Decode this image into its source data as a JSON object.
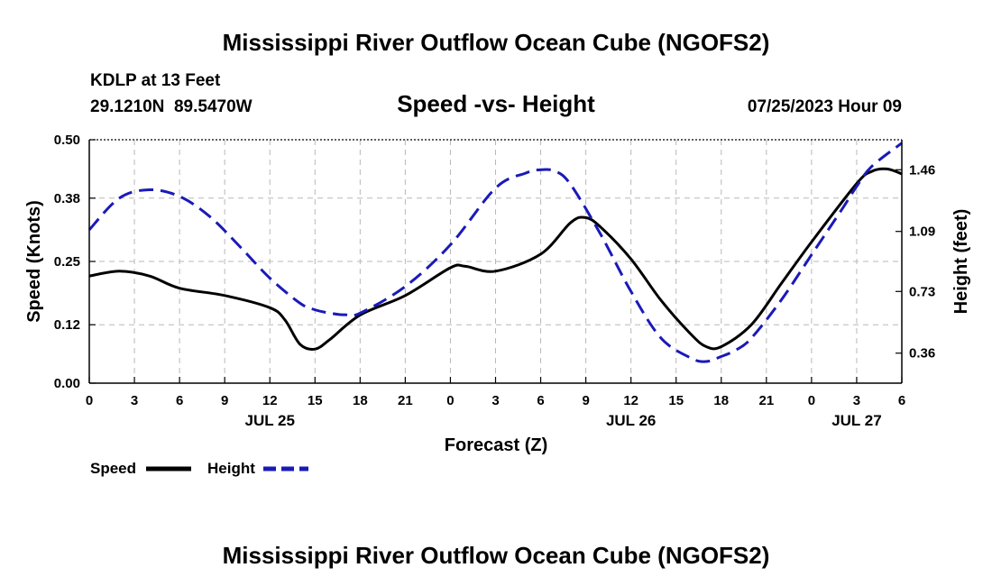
{
  "page_title": "Mississippi River Outflow Ocean Cube (NGOFS2)",
  "footer_title": "Mississippi River Outflow Ocean Cube (NGOFS2)",
  "station": {
    "name": "KDLP at 13 Feet",
    "coords": "29.1210N  89.5470W"
  },
  "forecast_stamp": "07/25/2023 Hour 09",
  "chart_data": {
    "type": "line",
    "title": "Speed -vs- Height",
    "xlabel": "Forecast (Z)",
    "ylabel": "Speed (Knots)",
    "y2label": "Height (feet)",
    "xlim": [
      0,
      54
    ],
    "ylim": [
      0,
      0.5
    ],
    "y2lim": [
      0.18,
      1.64
    ],
    "x_ticks": [
      0,
      3,
      6,
      9,
      12,
      15,
      18,
      21,
      24,
      27,
      30,
      33,
      36,
      39,
      42,
      45,
      48,
      51,
      54
    ],
    "x_tick_labels": [
      "0",
      "3",
      "6",
      "9",
      "12",
      "15",
      "18",
      "21",
      "0",
      "3",
      "6",
      "9",
      "12",
      "15",
      "18",
      "21",
      "0",
      "3",
      "6"
    ],
    "y_ticks": [
      0.0,
      0.12,
      0.25,
      0.38,
      0.5
    ],
    "y_tick_labels": [
      "0.00",
      "0.12",
      "0.25",
      "0.38",
      "0.50"
    ],
    "y2_ticks": [
      0.36,
      0.73,
      1.09,
      1.46
    ],
    "y2_tick_labels": [
      "0.36",
      "0.73",
      "1.09",
      "1.46"
    ],
    "date_labels": [
      {
        "x": 12,
        "label": "JUL 25"
      },
      {
        "x": 36,
        "label": "JUL 26"
      },
      {
        "x": 51,
        "label": "JUL 27"
      }
    ],
    "grid": true,
    "series": [
      {
        "name": "Speed",
        "axis": "left",
        "color": "#000000",
        "dash": "solid",
        "x": [
          0,
          2,
          4,
          6,
          9,
          12,
          13,
          14,
          15,
          16,
          18,
          21,
          24,
          25,
          27,
          30,
          32,
          33,
          34,
          36,
          38,
          40,
          41,
          42,
          44,
          46,
          48,
          51,
          52,
          53,
          54
        ],
        "values": [
          0.22,
          0.23,
          0.22,
          0.195,
          0.18,
          0.155,
          0.13,
          0.08,
          0.07,
          0.09,
          0.14,
          0.18,
          0.237,
          0.24,
          0.23,
          0.265,
          0.33,
          0.34,
          0.32,
          0.255,
          0.17,
          0.1,
          0.075,
          0.075,
          0.12,
          0.205,
          0.29,
          0.41,
          0.435,
          0.44,
          0.43
        ]
      },
      {
        "name": "Height",
        "axis": "right",
        "color": "#1a1ab8",
        "dash": "dashed",
        "x": [
          0,
          2,
          4,
          6,
          8,
          10,
          12,
          14,
          15,
          16,
          17,
          18,
          21,
          24,
          27,
          29,
          30,
          31,
          32,
          34,
          36,
          38,
          40,
          41,
          42,
          43,
          44,
          46,
          48,
          50,
          51,
          52,
          54
        ],
        "values": [
          1.1,
          1.29,
          1.34,
          1.3,
          1.18,
          1.0,
          0.81,
          0.66,
          0.62,
          0.6,
          0.59,
          0.6,
          0.76,
          1.01,
          1.35,
          1.44,
          1.46,
          1.45,
          1.37,
          1.07,
          0.73,
          0.45,
          0.33,
          0.31,
          0.34,
          0.38,
          0.45,
          0.68,
          0.95,
          1.22,
          1.36,
          1.48,
          1.62
        ]
      }
    ],
    "legend": [
      {
        "label": "Speed",
        "color": "#000000",
        "dash": "solid"
      },
      {
        "label": "Height",
        "color": "#1a1ab8",
        "dash": "dashed"
      }
    ],
    "legend_position": "bottom-left"
  }
}
